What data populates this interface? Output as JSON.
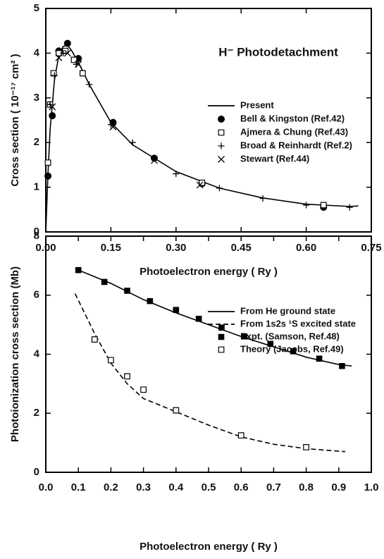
{
  "chart_data": [
    {
      "type": "line",
      "title": "H⁻ Photodetachment",
      "x_label": "Photoelectron energy ( Ry )",
      "y_label": "Cross section ( 10⁻¹⁷ cm² )",
      "xlim": [
        0,
        0.75
      ],
      "ylim": [
        0,
        5
      ],
      "xticks": [
        {
          "value": 0,
          "label": "0.00"
        },
        {
          "value": 0.15,
          "label": "0.15"
        },
        {
          "value": 0.3,
          "label": "0.30"
        },
        {
          "value": 0.45,
          "label": "0.45"
        },
        {
          "value": 0.6,
          "label": "0.60"
        },
        {
          "value": 0.75,
          "label": "0.75"
        }
      ],
      "yticks": [
        0,
        1,
        2,
        3,
        4,
        5
      ],
      "legend_position": "upper right",
      "series": [
        {
          "name": "Present",
          "color": "#000000",
          "marker": "line",
          "x": [
            0,
            0.005,
            0.01,
            0.02,
            0.03,
            0.04,
            0.05,
            0.06,
            0.08,
            0.1,
            0.15,
            0.2,
            0.3,
            0.4,
            0.5,
            0.6,
            0.7,
            0.72
          ],
          "values": [
            0,
            1.3,
            2.3,
            3.4,
            3.95,
            4.15,
            4.18,
            4.05,
            3.7,
            3.3,
            2.45,
            1.95,
            1.35,
            0.98,
            0.76,
            0.62,
            0.57,
            0.58
          ]
        },
        {
          "name": "Bell & Kingston (Ref.42)",
          "color": "#000000",
          "marker": "circle",
          "x": [
            0.005,
            0.015,
            0.03,
            0.05,
            0.075,
            0.155,
            0.25,
            0.36,
            0.64
          ],
          "values": [
            1.25,
            2.6,
            4.05,
            4.22,
            3.88,
            2.45,
            1.65,
            1.08,
            0.55
          ]
        },
        {
          "name": "Ajmera & Chung (Ref.43)",
          "color": "#000000",
          "marker": "square-open",
          "x": [
            0.005,
            0.01,
            0.018,
            0.03,
            0.045,
            0.065,
            0.085,
            0.36,
            0.64
          ],
          "values": [
            1.55,
            2.85,
            3.55,
            4.0,
            4.05,
            3.85,
            3.55,
            1.1,
            0.6
          ]
        },
        {
          "name": "Broad & Reinhardt (Ref.2)",
          "color": "#000000",
          "marker": "plus",
          "x": [
            0.01,
            0.02,
            0.04,
            0.07,
            0.1,
            0.15,
            0.2,
            0.3,
            0.4,
            0.5,
            0.6,
            0.7
          ],
          "values": [
            2.85,
            3.5,
            4.0,
            3.75,
            3.3,
            2.4,
            2.0,
            1.3,
            0.98,
            0.75,
            0.6,
            0.55
          ]
        },
        {
          "name": "Stewart (Ref.44)",
          "color": "#000000",
          "marker": "cross",
          "x": [
            0.015,
            0.03,
            0.05,
            0.075,
            0.155,
            0.25,
            0.355
          ],
          "values": [
            2.8,
            3.9,
            4.0,
            3.75,
            2.35,
            1.6,
            1.05
          ]
        }
      ]
    },
    {
      "type": "line",
      "x_label": "Photoelectron energy ( Ry )",
      "y_label": "Photoionization cross section (Mb)",
      "xlim": [
        0,
        1
      ],
      "ylim": [
        0,
        8
      ],
      "xticks": [
        {
          "value": 0,
          "label": "0.0"
        },
        {
          "value": 0.1,
          "label": "0.1"
        },
        {
          "value": 0.2,
          "label": "0.2"
        },
        {
          "value": 0.3,
          "label": "0.3"
        },
        {
          "value": 0.4,
          "label": "0.4"
        },
        {
          "value": 0.5,
          "label": "0.5"
        },
        {
          "value": 0.6,
          "label": "0.6"
        },
        {
          "value": 0.7,
          "label": "0.7"
        },
        {
          "value": 0.8,
          "label": "0.8"
        },
        {
          "value": 0.9,
          "label": "0.9"
        },
        {
          "value": 1,
          "label": "1.0"
        }
      ],
      "yticks": [
        0,
        2,
        4,
        6,
        8
      ],
      "legend_position": "upper right",
      "series": [
        {
          "name": "From He ground state",
          "color": "#000000",
          "marker": "line",
          "x": [
            0.1,
            0.2,
            0.3,
            0.4,
            0.5,
            0.6,
            0.7,
            0.8,
            0.9,
            0.94
          ],
          "values": [
            6.85,
            6.4,
            5.85,
            5.4,
            5.0,
            4.6,
            4.25,
            3.9,
            3.65,
            3.6
          ]
        },
        {
          "name": "From 1s2s ¹S excited state",
          "color": "#000000",
          "marker": "dashed",
          "x": [
            0.09,
            0.15,
            0.2,
            0.25,
            0.3,
            0.4,
            0.5,
            0.6,
            0.7,
            0.8,
            0.92
          ],
          "values": [
            6.05,
            4.7,
            3.7,
            3.0,
            2.5,
            2.05,
            1.6,
            1.2,
            0.95,
            0.8,
            0.7
          ]
        },
        {
          "name": "Expt. (Samson, Ref.48)",
          "color": "#000000",
          "marker": "square-filled",
          "x": [
            0.1,
            0.18,
            0.25,
            0.32,
            0.4,
            0.47,
            0.54,
            0.61,
            0.69,
            0.76,
            0.84,
            0.91
          ],
          "values": [
            6.85,
            6.45,
            6.15,
            5.8,
            5.5,
            5.2,
            4.9,
            4.6,
            4.35,
            4.1,
            3.85,
            3.6
          ]
        },
        {
          "name": "Theory (Jacobs, Ref.49)",
          "color": "#000000",
          "marker": "square-open",
          "x": [
            0.15,
            0.2,
            0.25,
            0.3,
            0.4,
            0.6,
            0.8
          ],
          "values": [
            4.5,
            3.8,
            3.25,
            2.8,
            2.1,
            1.25,
            0.85
          ]
        }
      ]
    }
  ]
}
